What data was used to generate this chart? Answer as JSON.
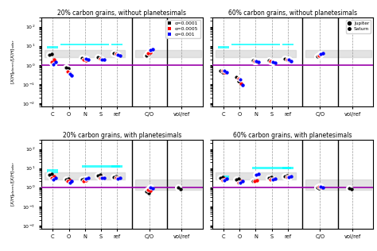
{
  "titles": [
    "20% carbon grains, without planetesimals",
    "60% carbon grains, without planetesimals",
    "20% carbon grains, with planetesimals",
    "60% carbon grains, with planetesimals"
  ],
  "alpha_labels": [
    "α=0.0001",
    "α=0.0005",
    "α=0.001"
  ],
  "colors": [
    "black",
    "red",
    "blue"
  ],
  "x_tick_pos": [
    0,
    1,
    2,
    3,
    4,
    6,
    8
  ],
  "x_tick_lab": [
    "C",
    "O",
    "N",
    "S",
    "ref",
    "C/O",
    "vol/ref"
  ],
  "x_map": {
    "C": 0,
    "O": 1,
    "N": 2,
    "S": 3,
    "ref": 4,
    "CO": 6,
    "vr": 8
  },
  "xlim": [
    -0.7,
    9.3
  ],
  "ylim": [
    0.007,
    300
  ],
  "vlines_solid": [
    4.9,
    7.1
  ],
  "vlines_dashed": [
    0,
    1,
    2,
    3,
    4,
    6,
    8
  ],
  "purple_y": 1.0,
  "subplot_configs": [
    {
      "title": "20% carbon grains, without planetesimals",
      "gray_regions": [
        {
          "xlo": -0.5,
          "xhi": 4.5,
          "ylo": 2.5,
          "yhi": 6.0
        },
        {
          "xlo": 5.1,
          "xhi": 9.2,
          "ylo": 2.5,
          "yhi": 6.0
        }
      ],
      "cyan_bars": [
        {
          "x": 0,
          "ylo": 7.0,
          "yhi": 10.0,
          "xspan": 0.35
        },
        {
          "x": 2,
          "ylo": 10.5,
          "yhi": 13.5,
          "xspan": 1.5
        },
        {
          "x": 4,
          "ylo": 10.5,
          "yhi": 13.5,
          "xspan": 0.35
        }
      ],
      "jup": {
        "C": [
          3.5,
          1.5,
          1.1
        ],
        "O": [
          0.75,
          0.45,
          0.35
        ],
        "N": [
          2.4,
          1.9,
          2.1
        ],
        "S": [
          2.6,
          2.2,
          2.0
        ],
        "ref": [
          4.2,
          3.7,
          3.3
        ],
        "CO": [
          3.2,
          4.2,
          6.0
        ],
        "vr": [
          null,
          null,
          null
        ]
      },
      "sat": {
        "C": [
          3.9,
          1.9,
          1.5
        ],
        "O": [
          0.65,
          0.38,
          0.28
        ],
        "N": [
          2.2,
          1.7,
          1.9
        ],
        "S": [
          2.4,
          2.0,
          1.85
        ],
        "ref": [
          4.0,
          3.5,
          3.1
        ],
        "CO": [
          3.6,
          4.7,
          6.8
        ],
        "vr": [
          null,
          null,
          null
        ]
      }
    },
    {
      "title": "60% carbon grains, without planetesimals",
      "gray_regions": [
        {
          "xlo": -0.5,
          "xhi": 4.5,
          "ylo": 2.5,
          "yhi": 6.0
        },
        {
          "xlo": 5.1,
          "xhi": 9.2,
          "ylo": 2.5,
          "yhi": 6.0
        }
      ],
      "cyan_bars": [
        {
          "x": 0,
          "ylo": 7.0,
          "yhi": 10.0,
          "xspan": 0.35
        },
        {
          "x": 2,
          "ylo": 10.5,
          "yhi": 13.5,
          "xspan": 1.5
        },
        {
          "x": 4,
          "ylo": 10.5,
          "yhi": 13.5,
          "xspan": 0.35
        }
      ],
      "jup": {
        "C": [
          0.52,
          0.52,
          0.5
        ],
        "O": [
          0.23,
          0.2,
          0.17
        ],
        "N": [
          1.75,
          1.6,
          1.65
        ],
        "S": [
          1.75,
          1.58,
          1.5
        ],
        "ref": [
          2.1,
          1.95,
          1.85
        ],
        "CO": [
          2.8,
          3.2,
          3.8
        ],
        "vr": [
          null,
          null,
          null
        ]
      },
      "sat": {
        "C": [
          0.43,
          0.43,
          0.4
        ],
        "O": [
          0.14,
          0.11,
          0.09
        ],
        "N": [
          1.58,
          1.43,
          1.48
        ],
        "S": [
          1.58,
          1.42,
          1.35
        ],
        "ref": [
          1.9,
          1.75,
          1.65
        ],
        "CO": [
          3.1,
          3.6,
          4.3
        ],
        "vr": [
          null,
          null,
          null
        ]
      }
    },
    {
      "title": "20% carbon grains, with planetesimals",
      "gray_regions": [
        {
          "xlo": -0.5,
          "xhi": 4.5,
          "ylo": 2.5,
          "yhi": 6.0
        },
        {
          "xlo": 5.1,
          "xhi": 9.2,
          "ylo": 0.7,
          "yhi": 2.5
        }
      ],
      "cyan_bars": [
        {
          "x": 0,
          "ylo": 5.5,
          "yhi": 8.5,
          "xspan": 0.35
        },
        {
          "x": 3,
          "ylo": 11.0,
          "yhi": 14.5,
          "xspan": 1.2
        },
        {
          "x": 4,
          "ylo": 11.0,
          "yhi": 14.5,
          "xspan": 0.35
        }
      ],
      "jup": {
        "C": [
          4.5,
          3.2,
          2.5
        ],
        "O": [
          2.5,
          2.0,
          1.8
        ],
        "N": [
          2.5,
          2.0,
          2.8
        ],
        "S": [
          4.0,
          3.2,
          3.0
        ],
        "ref": [
          3.5,
          3.0,
          2.8
        ],
        "CO": [
          0.62,
          0.75,
          0.95
        ],
        "vr": [
          0.97,
          null,
          null
        ]
      },
      "sat": {
        "C": [
          5.0,
          3.7,
          3.0
        ],
        "O": [
          2.8,
          2.2,
          2.0
        ],
        "N": [
          2.8,
          2.2,
          3.1
        ],
        "S": [
          4.3,
          3.4,
          3.2
        ],
        "ref": [
          3.8,
          3.2,
          3.0
        ],
        "CO": [
          0.52,
          0.65,
          0.85
        ],
        "vr": [
          0.83,
          null,
          null
        ]
      }
    },
    {
      "title": "60% carbon grains, with planetesimals",
      "gray_regions": [
        {
          "xlo": -0.5,
          "xhi": 4.5,
          "ylo": 2.5,
          "yhi": 6.0
        },
        {
          "xlo": 5.1,
          "xhi": 9.2,
          "ylo": 0.7,
          "yhi": 2.5
        }
      ],
      "cyan_bars": [
        {
          "x": 0,
          "ylo": 2.5,
          "yhi": 4.0,
          "xspan": 0.35
        },
        {
          "x": 3,
          "ylo": 9.0,
          "yhi": 12.0,
          "xspan": 1.2
        },
        {
          "x": 4,
          "ylo": 9.0,
          "yhi": 12.0,
          "xspan": 0.35
        }
      ],
      "jup": {
        "C": [
          3.0,
          2.3,
          2.3
        ],
        "O": [
          2.5,
          1.7,
          1.7
        ],
        "N": [
          2.0,
          2.0,
          4.5
        ],
        "S": [
          3.2,
          2.5,
          2.5
        ],
        "ref": [
          3.8,
          3.5,
          3.5
        ],
        "CO": [
          1.0,
          1.05,
          1.1
        ],
        "vr": [
          0.9,
          null,
          null
        ]
      },
      "sat": {
        "C": [
          3.5,
          2.7,
          2.7
        ],
        "O": [
          2.8,
          2.0,
          2.0
        ],
        "N": [
          2.2,
          2.2,
          4.9
        ],
        "S": [
          3.5,
          2.7,
          2.7
        ],
        "ref": [
          4.1,
          3.8,
          3.8
        ],
        "CO": [
          0.9,
          0.95,
          1.0
        ],
        "vr": [
          0.82,
          null,
          null
        ]
      }
    }
  ]
}
